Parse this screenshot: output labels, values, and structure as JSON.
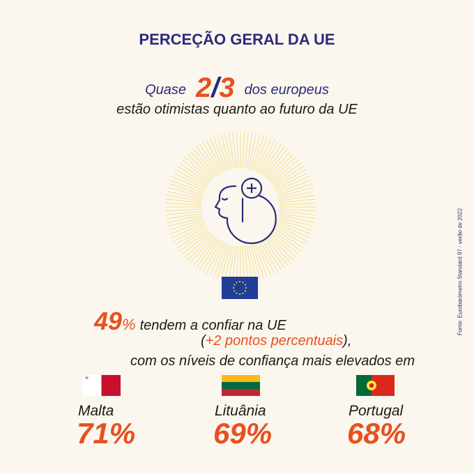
{
  "title": "PERCEÇÃO GERAL DA UE",
  "headline": {
    "pre": "Quase",
    "num": "2",
    "slash": "/",
    "den": "3",
    "post": "dos europeus",
    "line2": "estão otimistas quanto ao futuro da UE"
  },
  "icon": "optimistic-head-plus-icon",
  "trust": {
    "value": "49",
    "pct": "%",
    "text": "tendem a confiar na UE",
    "change_open": "(",
    "change": "+2 pontos percentuais",
    "change_close": "),",
    "line3": "com os níveis de confiança mais elevados em"
  },
  "countries": [
    {
      "name": "Malta",
      "value": "71%"
    },
    {
      "name": "Lituânia",
      "value": "69%"
    },
    {
      "name": "Portugal",
      "value": "68%"
    }
  ],
  "source": "Fonte: Eurobarómetro Standard 97 - verão de 2022",
  "colors": {
    "navy": "#2b2a7c",
    "orange": "#e8501f",
    "background": "#fbf7ee",
    "rays": "#f3df8a"
  }
}
